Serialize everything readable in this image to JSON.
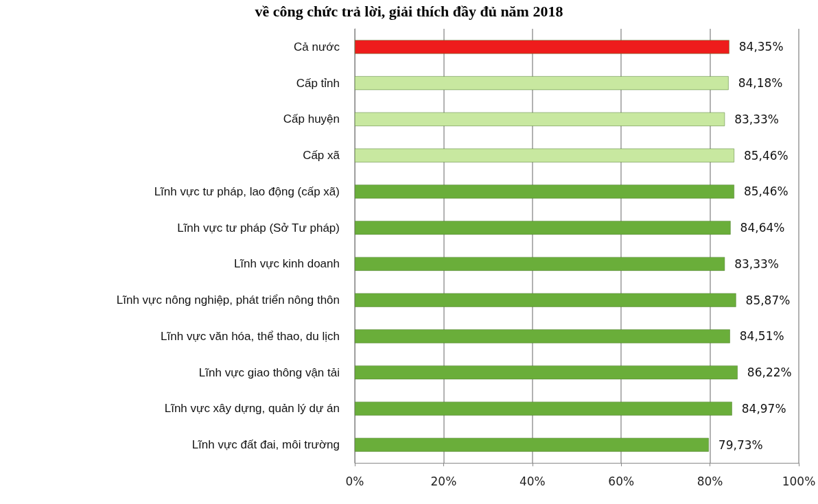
{
  "chart_data": {
    "type": "bar",
    "orientation": "horizontal",
    "title": "về công chức trả lời, giải thích đầy đủ năm 2018",
    "categories": [
      "Cả nước",
      "Cấp tỉnh",
      "Cấp huyện",
      "Cấp xã",
      "Lĩnh vực tư pháp, lao động (cấp xã)",
      "Lĩnh vực tư pháp (Sở Tư pháp)",
      "Lĩnh vực kinh doanh",
      "Lĩnh vực nông nghiệp, phát triển nông thôn",
      "Lĩnh vực văn hóa, thể thao, du lịch",
      "Lĩnh vực giao thông vận tải",
      "Lĩnh vực xây dựng, quản lý dự án",
      "Lĩnh vực đất đai, môi trường"
    ],
    "values": [
      84.35,
      84.18,
      83.33,
      85.46,
      85.46,
      84.64,
      83.33,
      85.87,
      84.51,
      86.22,
      84.97,
      79.73
    ],
    "value_labels": [
      "84,35%",
      "84,18%",
      "83,33%",
      "85,46%",
      "85,46%",
      "84,64%",
      "83,33%",
      "85,87%",
      "84,51%",
      "86,22%",
      "84,97%",
      "79,73%"
    ],
    "colors": [
      "#ee1c1c",
      "#c8e8a0",
      "#c8e8a0",
      "#c8e8a0",
      "#6aae3a",
      "#6aae3a",
      "#6aae3a",
      "#6aae3a",
      "#6aae3a",
      "#6aae3a",
      "#6aae3a",
      "#6aae3a"
    ],
    "xlim": [
      0,
      100
    ],
    "xticks": [
      {
        "value": 0,
        "label": "0%"
      },
      {
        "value": 20,
        "label": "20%"
      },
      {
        "value": 40,
        "label": "40%"
      },
      {
        "value": 60,
        "label": "60%"
      },
      {
        "value": 80,
        "label": "80%"
      },
      {
        "value": 100,
        "label": "100%"
      }
    ],
    "grid": "x"
  }
}
